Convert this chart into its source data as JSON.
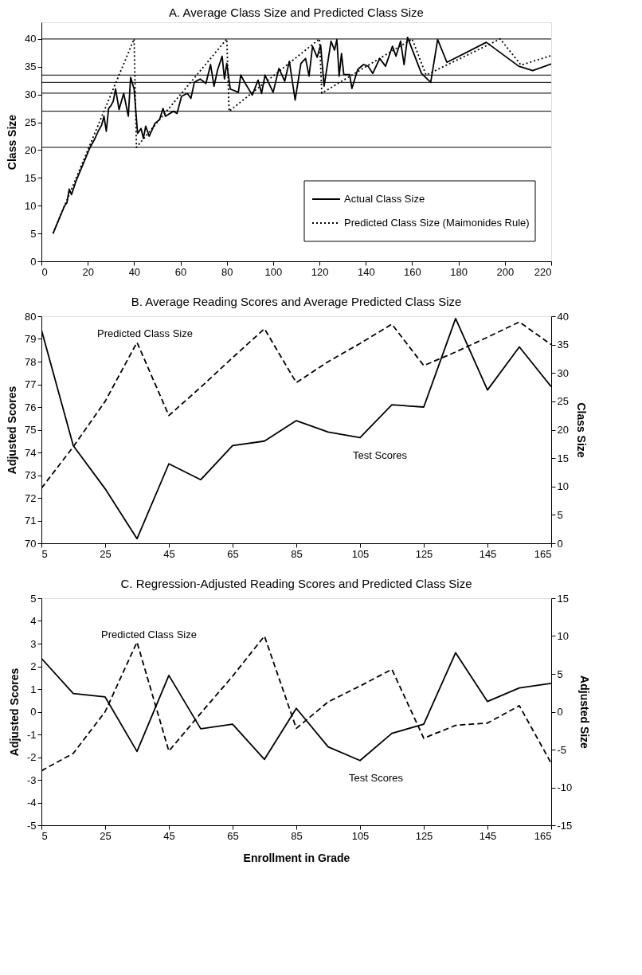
{
  "chart_data": [
    {
      "type": "line",
      "title": "A. Average Class Size and Predicted Class Size",
      "ylabel": "Class Size",
      "xlim": [
        0,
        220
      ],
      "xticks": [
        0,
        20,
        40,
        60,
        80,
        100,
        120,
        140,
        160,
        180,
        200,
        220
      ],
      "ylim": [
        0,
        43
      ],
      "yticks": [
        0,
        5,
        10,
        15,
        20,
        25,
        30,
        35,
        40
      ],
      "grid": false,
      "legend": "bottom right",
      "ref_lines": [
        {
          "axis": "y",
          "value": 40,
          "label": null
        },
        {
          "axis": "y",
          "value": 33.5,
          "label": null
        },
        {
          "axis": "y",
          "value": 32.2,
          "label": null
        },
        {
          "axis": "y",
          "value": 30.25,
          "label": null
        },
        {
          "axis": "y",
          "value": 27,
          "label": null
        },
        {
          "axis": "y",
          "value": 20.5,
          "label": null
        }
      ],
      "series": [
        {
          "name": "Actual Class Size",
          "color": "#000000",
          "line_style": "solid",
          "x": [
            5,
            8,
            10,
            11,
            12,
            13,
            15,
            18,
            21,
            23,
            24.5,
            26,
            27,
            28,
            29,
            30,
            31,
            32,
            33.5,
            35.5,
            37.5,
            38.5,
            40,
            41.5,
            43,
            44,
            45,
            46.5,
            49,
            51,
            52.5,
            53.5,
            57,
            58.5,
            60.5,
            63,
            64.5,
            66,
            68.5,
            71,
            73,
            74.5,
            76,
            78,
            79,
            80,
            81.5,
            85,
            86,
            88,
            91,
            93.5,
            95,
            96.5,
            100,
            102.5,
            105,
            107,
            109.5,
            112,
            114,
            115.5,
            117,
            119,
            120.5,
            122,
            123.5,
            125,
            126.5,
            127.5,
            128.5,
            129.5,
            130.5,
            133,
            134,
            136.5,
            139,
            141,
            143,
            146,
            148.5,
            151.5,
            153,
            155,
            156.5,
            158,
            164,
            168,
            171,
            175,
            192,
            206,
            212,
            220
          ],
          "values": [
            5,
            8,
            10,
            10.5,
            13,
            12,
            14.5,
            17.5,
            20.5,
            22,
            23.4,
            24.5,
            26.1,
            23.4,
            27.5,
            28,
            28.8,
            31,
            27.3,
            30.2,
            26.1,
            33.1,
            31,
            23,
            23.9,
            22.1,
            24.3,
            22.5,
            24.8,
            25.5,
            27.5,
            26.1,
            27,
            26.6,
            29.7,
            30.2,
            29.3,
            32.2,
            32.8,
            32,
            35.4,
            31.5,
            34.4,
            36.9,
            32.8,
            35.6,
            31,
            30.4,
            33.5,
            32,
            29.9,
            32.6,
            30.2,
            33.5,
            30.4,
            34.7,
            32.4,
            36,
            29,
            35.6,
            36.5,
            33.3,
            38.7,
            36.7,
            38.9,
            31.5,
            35.6,
            39.6,
            38,
            39.9,
            33.3,
            37.4,
            33.6,
            33.6,
            31.1,
            34.5,
            35.4,
            35.1,
            33.8,
            36.5,
            35.1,
            38.7,
            36.9,
            39.6,
            35.4,
            40.3,
            33.8,
            32.2,
            39.9,
            35.8,
            39.4,
            35.1,
            34.3,
            35.5
          ]
        },
        {
          "name": "Predicted Class Size (Maimonides Rule)",
          "color": "#000000",
          "line_style": "dotted",
          "x": [
            5,
            40,
            41,
            80,
            81,
            120,
            121,
            160,
            166,
            198,
            207,
            220
          ],
          "values": [
            5,
            40,
            20.5,
            40,
            27,
            40,
            30.25,
            40,
            33.5,
            40,
            35.3,
            37
          ]
        }
      ]
    },
    {
      "type": "line",
      "title": "B. Average Reading Scores and Average Predicted Class Size",
      "ylabel": "Adjusted Scores",
      "y2label": "Class Size",
      "xlim": [
        5,
        165
      ],
      "xticks": [
        5,
        25,
        45,
        65,
        85,
        105,
        125,
        145,
        165
      ],
      "ylim": [
        70,
        80
      ],
      "yticks": [
        70,
        71,
        72,
        73,
        74,
        75,
        76,
        77,
        78,
        79,
        80
      ],
      "y2lim": [
        0,
        40
      ],
      "y2ticks": [
        0,
        5,
        10,
        15,
        20,
        25,
        30,
        35,
        40
      ],
      "grid": false,
      "x": [
        5,
        15,
        25,
        35,
        45,
        55,
        65,
        75,
        85,
        95,
        105,
        115,
        125,
        135,
        145,
        155,
        165
      ],
      "series": [
        {
          "name": "Predicted Class Size",
          "color": "#000000",
          "line_style": "dashed",
          "axis": "y2",
          "values": [
            9.7,
            17,
            25,
            35.4,
            22.5,
            27.5,
            32.7,
            37.8,
            28.3,
            32,
            35.2,
            38.6,
            31.3,
            33.7,
            36.3,
            39,
            35
          ]
        },
        {
          "name": "Test Scores",
          "color": "#000000",
          "line_style": "solid",
          "values": [
            79.4,
            74.3,
            72.4,
            70.2,
            73.5,
            72.8,
            74.3,
            74.5,
            75.4,
            74.9,
            74.65,
            76.1,
            76,
            79.9,
            76.75,
            78.65,
            76.9
          ]
        }
      ]
    },
    {
      "type": "line",
      "title": "C. Regression-Adjusted Reading Scores and Predicted Class Size",
      "xlabel": "Enrollment in Grade",
      "ylabel": "Adjusted Scores",
      "y2label": "Adjusted Size",
      "xlim": [
        5,
        165
      ],
      "xticks": [
        5,
        25,
        45,
        65,
        85,
        105,
        125,
        145,
        165
      ],
      "ylim": [
        -5,
        5
      ],
      "yticks": [
        -5,
        -4,
        -3,
        -2,
        -1,
        0,
        1,
        2,
        3,
        4,
        5
      ],
      "y2lim": [
        -15,
        15
      ],
      "y2ticks": [
        -15,
        -10,
        -5,
        0,
        5,
        10,
        15
      ],
      "grid": false,
      "x": [
        5,
        15,
        25,
        35,
        45,
        55,
        65,
        75,
        85,
        95,
        105,
        115,
        125,
        135,
        145,
        155,
        165
      ],
      "series": [
        {
          "name": "Predicted Class Size",
          "color": "#000000",
          "line_style": "dashed",
          "axis": "y2",
          "values": [
            -7.8,
            -5.5,
            0,
            9.2,
            -5.2,
            -0.2,
            4.7,
            10,
            -2.2,
            1.3,
            3.4,
            5.6,
            -3.5,
            -1.8,
            -1.5,
            0.8,
            -6.8
          ]
        },
        {
          "name": "Test Scores",
          "color": "#000000",
          "line_style": "solid",
          "values": [
            2.35,
            0.8,
            0.65,
            -1.75,
            1.6,
            -0.75,
            -0.55,
            -2.1,
            0.15,
            -1.55,
            -2.15,
            -0.95,
            -0.55,
            2.6,
            0.45,
            1.05,
            1.25
          ]
        }
      ]
    }
  ]
}
